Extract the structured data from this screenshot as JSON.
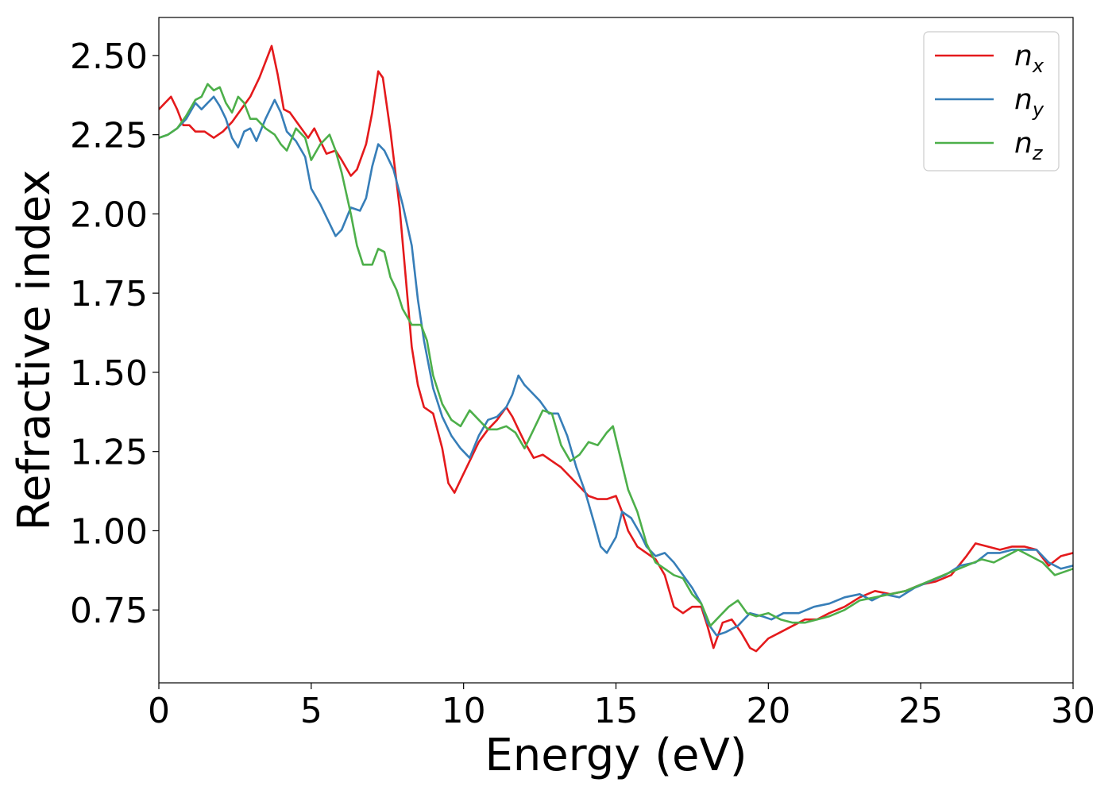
{
  "chart_data": {
    "type": "line",
    "title": "",
    "xlabel": "Energy (eV)",
    "ylabel": "Refractive index",
    "xlim": [
      0,
      30
    ],
    "ylim": [
      0.52,
      2.62
    ],
    "xticks": [
      0,
      5,
      10,
      15,
      20,
      25,
      30
    ],
    "xtick_labels": [
      "0",
      "5",
      "10",
      "15",
      "20",
      "25",
      "30"
    ],
    "yticks": [
      0.75,
      1.0,
      1.25,
      1.5,
      1.75,
      2.0,
      2.25,
      2.5
    ],
    "ytick_labels": [
      "0.75",
      "1.00",
      "1.25",
      "1.50",
      "1.75",
      "2.00",
      "2.25",
      "2.50"
    ],
    "grid": false,
    "legend_position": "top-right",
    "series": [
      {
        "name": "n",
        "subscript": "x",
        "color": "#e41a1c",
        "x": [
          0,
          0.2,
          0.4,
          0.6,
          0.8,
          1.0,
          1.2,
          1.5,
          1.8,
          2.1,
          2.4,
          2.7,
          3.0,
          3.3,
          3.5,
          3.7,
          3.9,
          4.1,
          4.3,
          4.6,
          4.9,
          5.1,
          5.3,
          5.5,
          5.8,
          6.0,
          6.3,
          6.5,
          6.8,
          7.0,
          7.2,
          7.35,
          7.6,
          7.9,
          8.1,
          8.3,
          8.5,
          8.7,
          9.0,
          9.3,
          9.5,
          9.7,
          9.9,
          10.2,
          10.5,
          10.8,
          11.1,
          11.4,
          11.6,
          11.8,
          12.0,
          12.3,
          12.6,
          12.9,
          13.2,
          13.5,
          13.8,
          14.1,
          14.4,
          14.7,
          15.0,
          15.2,
          15.4,
          15.7,
          16.0,
          16.3,
          16.6,
          16.9,
          17.2,
          17.5,
          17.8,
          18.0,
          18.2,
          18.5,
          18.8,
          19.1,
          19.4,
          19.6,
          19.8,
          20.0,
          20.4,
          20.8,
          21.2,
          21.6,
          22.0,
          22.5,
          23.0,
          23.5,
          24.0,
          24.5,
          25.0,
          25.5,
          26.0,
          26.5,
          26.8,
          27.2,
          27.6,
          28.0,
          28.4,
          28.8,
          29.2,
          29.6,
          30.0
        ],
        "values": [
          2.33,
          2.35,
          2.37,
          2.33,
          2.28,
          2.28,
          2.26,
          2.26,
          2.24,
          2.26,
          2.29,
          2.33,
          2.37,
          2.43,
          2.48,
          2.53,
          2.44,
          2.33,
          2.32,
          2.28,
          2.24,
          2.27,
          2.23,
          2.19,
          2.2,
          2.17,
          2.12,
          2.14,
          2.22,
          2.32,
          2.45,
          2.43,
          2.26,
          2.02,
          1.8,
          1.58,
          1.46,
          1.39,
          1.37,
          1.26,
          1.15,
          1.12,
          1.16,
          1.22,
          1.28,
          1.32,
          1.35,
          1.39,
          1.36,
          1.32,
          1.28,
          1.23,
          1.24,
          1.22,
          1.2,
          1.17,
          1.14,
          1.11,
          1.1,
          1.1,
          1.11,
          1.06,
          1.0,
          0.95,
          0.93,
          0.91,
          0.86,
          0.76,
          0.74,
          0.76,
          0.76,
          0.7,
          0.63,
          0.71,
          0.72,
          0.68,
          0.63,
          0.62,
          0.64,
          0.66,
          0.68,
          0.7,
          0.72,
          0.72,
          0.74,
          0.76,
          0.79,
          0.81,
          0.8,
          0.81,
          0.83,
          0.84,
          0.86,
          0.92,
          0.96,
          0.95,
          0.94,
          0.95,
          0.95,
          0.94,
          0.89,
          0.92,
          0.93
        ]
      },
      {
        "name": "n",
        "subscript": "y",
        "color": "#377eb8",
        "x": [
          0,
          0.3,
          0.6,
          0.9,
          1.2,
          1.4,
          1.6,
          1.8,
          2.0,
          2.2,
          2.4,
          2.6,
          2.8,
          3.0,
          3.2,
          3.5,
          3.8,
          4.0,
          4.2,
          4.5,
          4.8,
          5.0,
          5.3,
          5.6,
          5.8,
          6.0,
          6.3,
          6.6,
          6.8,
          7.0,
          7.2,
          7.4,
          7.7,
          8.0,
          8.3,
          8.5,
          8.7,
          9.0,
          9.3,
          9.6,
          9.9,
          10.2,
          10.5,
          10.8,
          11.1,
          11.4,
          11.6,
          11.8,
          12.0,
          12.2,
          12.5,
          12.8,
          13.1,
          13.4,
          13.7,
          14.0,
          14.3,
          14.5,
          14.7,
          15.0,
          15.2,
          15.5,
          15.8,
          16.0,
          16.3,
          16.6,
          16.9,
          17.2,
          17.5,
          17.8,
          18.0,
          18.3,
          18.6,
          19.0,
          19.4,
          19.8,
          20.1,
          20.5,
          21.0,
          21.5,
          22.0,
          22.5,
          23.0,
          23.4,
          23.8,
          24.3,
          24.8,
          25.3,
          25.8,
          26.3,
          26.8,
          27.2,
          27.6,
          28.0,
          28.4,
          28.8,
          29.2,
          29.6,
          30.0
        ],
        "values": [
          2.24,
          2.25,
          2.27,
          2.3,
          2.35,
          2.33,
          2.35,
          2.37,
          2.34,
          2.3,
          2.24,
          2.21,
          2.26,
          2.27,
          2.23,
          2.3,
          2.36,
          2.32,
          2.26,
          2.23,
          2.18,
          2.08,
          2.03,
          1.97,
          1.93,
          1.95,
          2.02,
          2.01,
          2.05,
          2.15,
          2.22,
          2.2,
          2.14,
          2.03,
          1.9,
          1.73,
          1.6,
          1.45,
          1.36,
          1.3,
          1.26,
          1.23,
          1.3,
          1.35,
          1.36,
          1.39,
          1.43,
          1.49,
          1.46,
          1.44,
          1.41,
          1.37,
          1.37,
          1.3,
          1.2,
          1.12,
          1.02,
          0.95,
          0.93,
          0.98,
          1.06,
          1.04,
          0.99,
          0.95,
          0.92,
          0.93,
          0.9,
          0.86,
          0.82,
          0.77,
          0.71,
          0.67,
          0.68,
          0.7,
          0.74,
          0.73,
          0.72,
          0.74,
          0.74,
          0.76,
          0.77,
          0.79,
          0.8,
          0.78,
          0.8,
          0.79,
          0.82,
          0.84,
          0.86,
          0.89,
          0.9,
          0.93,
          0.93,
          0.94,
          0.94,
          0.94,
          0.9,
          0.88,
          0.89
        ]
      },
      {
        "name": "n",
        "subscript": "z",
        "color": "#4daf4a",
        "x": [
          0,
          0.3,
          0.6,
          0.9,
          1.2,
          1.4,
          1.6,
          1.8,
          2.0,
          2.2,
          2.4,
          2.6,
          2.8,
          3.0,
          3.2,
          3.5,
          3.8,
          4.0,
          4.2,
          4.5,
          4.8,
          5.0,
          5.3,
          5.6,
          5.8,
          6.0,
          6.3,
          6.5,
          6.7,
          7.0,
          7.2,
          7.4,
          7.6,
          7.8,
          8.0,
          8.3,
          8.6,
          8.8,
          9.0,
          9.3,
          9.6,
          9.9,
          10.2,
          10.5,
          10.8,
          11.1,
          11.4,
          11.7,
          12.0,
          12.3,
          12.6,
          12.9,
          13.2,
          13.5,
          13.8,
          14.1,
          14.4,
          14.7,
          14.9,
          15.1,
          15.4,
          15.7,
          16.0,
          16.3,
          16.6,
          16.9,
          17.2,
          17.5,
          17.8,
          18.1,
          18.4,
          18.7,
          19.0,
          19.3,
          19.6,
          20.0,
          20.4,
          20.8,
          21.2,
          21.6,
          22.0,
          22.5,
          23.0,
          23.5,
          24.0,
          24.5,
          25.0,
          25.5,
          26.0,
          26.5,
          27.0,
          27.4,
          27.8,
          28.2,
          28.6,
          29.0,
          29.4,
          29.7,
          30.0
        ],
        "values": [
          2.24,
          2.25,
          2.27,
          2.31,
          2.36,
          2.37,
          2.41,
          2.39,
          2.4,
          2.35,
          2.32,
          2.37,
          2.35,
          2.3,
          2.3,
          2.27,
          2.25,
          2.22,
          2.2,
          2.27,
          2.24,
          2.17,
          2.22,
          2.25,
          2.2,
          2.13,
          2.0,
          1.9,
          1.84,
          1.84,
          1.89,
          1.88,
          1.8,
          1.76,
          1.7,
          1.65,
          1.65,
          1.6,
          1.49,
          1.4,
          1.35,
          1.33,
          1.38,
          1.35,
          1.32,
          1.32,
          1.33,
          1.31,
          1.26,
          1.32,
          1.38,
          1.37,
          1.27,
          1.22,
          1.24,
          1.28,
          1.27,
          1.31,
          1.33,
          1.25,
          1.13,
          1.06,
          0.96,
          0.9,
          0.88,
          0.86,
          0.85,
          0.8,
          0.77,
          0.7,
          0.73,
          0.76,
          0.78,
          0.74,
          0.73,
          0.74,
          0.72,
          0.71,
          0.71,
          0.72,
          0.73,
          0.75,
          0.78,
          0.79,
          0.8,
          0.81,
          0.83,
          0.85,
          0.87,
          0.89,
          0.91,
          0.9,
          0.92,
          0.94,
          0.92,
          0.9,
          0.86,
          0.87,
          0.88
        ]
      }
    ]
  }
}
